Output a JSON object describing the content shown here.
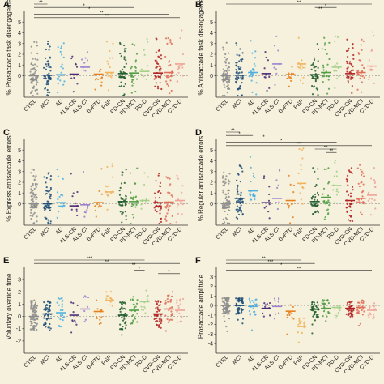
{
  "groups": [
    "CTRL",
    "MCI",
    "AD",
    "ALS-CN",
    "ALS-CI",
    "bvFTD",
    "PSP",
    "PD-CN",
    "PD-MCI",
    "PD-D",
    "CVD-CN",
    "CVD-MCI",
    "CVD-D"
  ],
  "colors": {
    "CTRL": "#8c8c8c",
    "MCI": "#1f4e79",
    "AD": "#4fb0e0",
    "ALS-CN": "#4b2a7a",
    "ALS-CI": "#9b7fd0",
    "bvFTD": "#e87f1c",
    "PSP": "#f1b35c",
    "PD-CN": "#1e5c2c",
    "PD-MCI": "#4f9e45",
    "PD-D": "#a6d08a",
    "CVD-CN": "#b22222",
    "CVD-MCI": "#e06c5a",
    "CVD-D": "#f0a39a"
  },
  "chart_data": [
    {
      "panel": "A",
      "type": "scatter",
      "ylabel": "% Prosaccade task disengagements",
      "ylim": [
        -2,
        6
      ],
      "yticks": [
        0,
        1,
        2,
        3,
        4,
        5
      ],
      "medians": [
        0,
        0.05,
        0.1,
        0.15,
        0.8,
        0.15,
        0.3,
        0.2,
        0.25,
        0.4,
        0.25,
        0.3,
        1.1
      ],
      "n": [
        80,
        55,
        22,
        10,
        8,
        12,
        14,
        40,
        25,
        12,
        40,
        28,
        16
      ],
      "brackets": [
        {
          "from": "CTRL",
          "to": "MCI",
          "label": "**"
        },
        {
          "from": "CTRL",
          "to": "PD-MCI",
          "label": "*"
        },
        {
          "from": "CTRL",
          "to": "PD-D",
          "label": "*"
        },
        {
          "from": "CTRL",
          "to": "CVD-MCI",
          "label": "**"
        },
        {
          "from": "CTRL",
          "to": "CVD-D",
          "label": "**"
        }
      ]
    },
    {
      "panel": "B",
      "type": "scatter",
      "ylabel": "% Antisaccade task disengagements",
      "ylim": [
        -2,
        6
      ],
      "yticks": [
        0,
        1,
        2,
        3,
        4,
        5
      ],
      "medians": [
        0,
        0.05,
        0.3,
        0.2,
        1.1,
        0.1,
        1.1,
        0.1,
        0.3,
        0.8,
        0.2,
        0.3,
        0.9
      ],
      "n": [
        80,
        55,
        22,
        10,
        8,
        12,
        14,
        40,
        25,
        12,
        40,
        28,
        16
      ],
      "brackets": [
        {
          "from": "CTRL",
          "to": "CVD-D",
          "label": "**"
        },
        {
          "from": "PD-CN",
          "to": "PD-D",
          "label": "*"
        },
        {
          "from": "PD-CN",
          "to": "PD-MCI",
          "label": "**"
        }
      ]
    },
    {
      "panel": "C",
      "type": "scatter",
      "ylabel": "% Express antisaccade errors",
      "ylim": [
        -2,
        6
      ],
      "yticks": [
        0,
        1,
        2,
        3,
        4,
        5
      ],
      "medians": [
        0,
        0,
        0.1,
        -0.2,
        -0.1,
        0.1,
        1.1,
        0.2,
        0.2,
        0.3,
        0.1,
        0.15,
        0.3
      ],
      "n": [
        80,
        55,
        22,
        10,
        8,
        12,
        14,
        40,
        25,
        12,
        40,
        28,
        16
      ],
      "brackets": []
    },
    {
      "panel": "D",
      "type": "scatter",
      "ylabel": "% Regular antisaccade errors",
      "ylim": [
        -2,
        6
      ],
      "yticks": [
        0,
        1,
        2,
        3,
        4,
        5
      ],
      "medians": [
        0,
        0.5,
        1.2,
        0.1,
        0.5,
        0.3,
        1.9,
        0.2,
        0.6,
        1.7,
        0.3,
        0.5,
        0.8
      ],
      "n": [
        80,
        55,
        22,
        10,
        8,
        12,
        14,
        40,
        25,
        12,
        40,
        28,
        16
      ],
      "brackets": [
        {
          "from": "CTRL",
          "to": "MCI",
          "label": "**"
        },
        {
          "from": "CTRL",
          "to": "AD",
          "label": "*"
        },
        {
          "from": "CTRL",
          "to": "PSP",
          "label": "*"
        },
        {
          "from": "CTRL",
          "to": "PD-D",
          "label": "*"
        },
        {
          "from": "CTRL",
          "to": "CVD-D",
          "label": "***"
        },
        {
          "from": "PD-CN",
          "to": "PD-D",
          "label": "**"
        },
        {
          "from": "PD-MCI",
          "to": "PD-D",
          "label": "**"
        }
      ]
    },
    {
      "panel": "E",
      "type": "scatter",
      "ylabel": "Voluntary override time",
      "ylim": [
        -3,
        4
      ],
      "yticks": [
        -2,
        -1,
        0,
        1,
        2,
        3
      ],
      "medians": [
        0,
        0.2,
        0.3,
        0.1,
        0.6,
        0.4,
        1.3,
        0.1,
        0.5,
        1.2,
        0.2,
        0.6,
        0.5
      ],
      "n": [
        80,
        55,
        22,
        10,
        8,
        12,
        14,
        40,
        25,
        12,
        40,
        28,
        16
      ],
      "brackets": [
        {
          "from": "CTRL",
          "to": "PD-D",
          "label": "***"
        },
        {
          "from": "CTRL",
          "to": "CVD-D",
          "label": "**"
        },
        {
          "from": "PD-CN",
          "to": "PD-D",
          "label": "**"
        },
        {
          "from": "PD-MCI",
          "to": "PD-D",
          "label": "*"
        },
        {
          "from": "CVD-CN",
          "to": "CVD-D",
          "label": "*"
        }
      ]
    },
    {
      "panel": "F",
      "type": "scatter",
      "ylabel": "Prosaccade amplitude",
      "ylim": [
        -5,
        4
      ],
      "yticks": [
        -4,
        -3,
        -2,
        -1,
        0,
        1,
        2,
        3
      ],
      "medians": [
        0,
        0,
        -0.1,
        -0.3,
        -0.1,
        -0.6,
        -2.2,
        -0.4,
        -0.3,
        -0.2,
        -0.3,
        -0.2,
        -0.5
      ],
      "n": [
        80,
        55,
        22,
        10,
        8,
        12,
        14,
        40,
        25,
        12,
        40,
        28,
        16
      ],
      "brackets": [
        {
          "from": "CTRL",
          "to": "PSP",
          "label": "**"
        },
        {
          "from": "CTRL",
          "to": "PD-CN",
          "label": "***"
        },
        {
          "from": "CTRL",
          "to": "PD-D",
          "label": "*"
        },
        {
          "from": "CTRL",
          "to": "CVD-D",
          "label": "**"
        }
      ]
    }
  ]
}
